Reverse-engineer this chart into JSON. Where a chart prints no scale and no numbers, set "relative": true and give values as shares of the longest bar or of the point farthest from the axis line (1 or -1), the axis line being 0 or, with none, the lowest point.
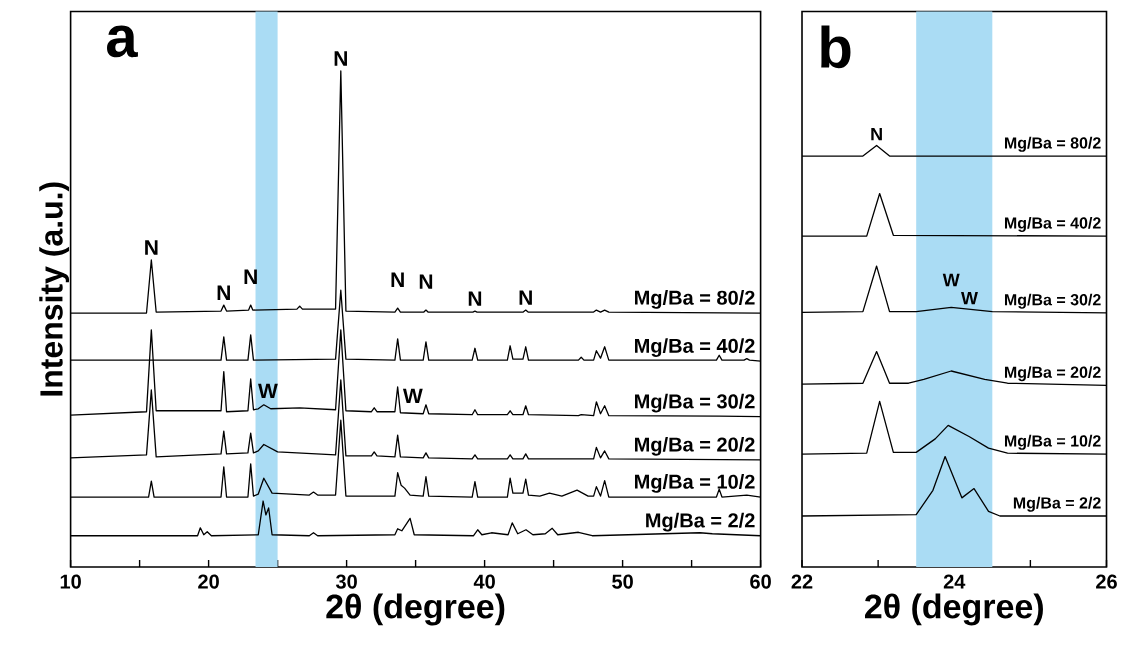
{
  "chart_data": [
    {
      "type": "line",
      "title": "a",
      "xlabel": "2θ (degree)",
      "ylabel": "Intensity (a.u.)",
      "relative": true,
      "xlim": [
        10,
        60
      ],
      "xticks": [
        10,
        {
          "value": 15,
          "label": null
        },
        20,
        {
          "value": 25,
          "label": null
        },
        30,
        {
          "value": 35,
          "label": null
        },
        40,
        {
          "value": 45,
          "label": null
        },
        50,
        {
          "value": 55,
          "label": null
        },
        60
      ],
      "bands": [
        {
          "axis": "x",
          "from": 23.4,
          "to": 25.0,
          "color": "#aadcf4"
        }
      ],
      "annotations": [
        {
          "text": "N",
          "x": 15.85,
          "y": 0.619
        },
        {
          "text": "N",
          "x": 21.1,
          "y": 0.528
        },
        {
          "text": "N",
          "x": 23.05,
          "y": 0.528
        },
        {
          "text": "N",
          "x": 29.58,
          "y": 1.0
        },
        {
          "text": "N",
          "x": 33.7,
          "y": 0.522
        },
        {
          "text": "N",
          "x": 35.75,
          "y": 0.518
        },
        {
          "text": "N",
          "x": 39.3,
          "y": 0.516
        },
        {
          "text": "N",
          "x": 42.98,
          "y": 0.518
        },
        {
          "text": "W",
          "x": 24.3,
          "y": 0.33
        },
        {
          "text": "W",
          "x": 34.8,
          "y": 0.32
        }
      ],
      "series": [
        {
          "name": "Mg/Ba = 80/2",
          "color": "#000000",
          "x": [
            10,
            15.5,
            15.85,
            16.2,
            20.9,
            21.1,
            21.3,
            22.9,
            23.05,
            23.2,
            26.4,
            26.6,
            26.8,
            29.2,
            29.58,
            29.95,
            33.5,
            33.7,
            33.9,
            35.6,
            35.75,
            35.9,
            39.15,
            39.3,
            39.45,
            42.8,
            42.98,
            43.15,
            47.9,
            48.1,
            48.4,
            48.7,
            49.0,
            60
          ],
          "values": [
            0.512,
            0.512,
            0.619,
            0.514,
            0.516,
            0.528,
            0.516,
            0.518,
            0.528,
            0.518,
            0.52,
            0.526,
            0.52,
            0.52,
            1.0,
            0.516,
            0.514,
            0.522,
            0.514,
            0.514,
            0.518,
            0.514,
            0.514,
            0.516,
            0.514,
            0.514,
            0.518,
            0.514,
            0.514,
            0.518,
            0.514,
            0.518,
            0.514,
            0.512
          ]
        },
        {
          "name": "Mg/Ba = 40/2",
          "color": "#000000",
          "x": [
            10,
            15.5,
            15.85,
            16.2,
            20.9,
            21.1,
            21.3,
            22.85,
            23.05,
            23.25,
            29.2,
            29.58,
            29.95,
            33.5,
            33.7,
            33.9,
            35.55,
            35.75,
            35.95,
            39.1,
            39.3,
            39.5,
            41.65,
            41.85,
            42.05,
            42.78,
            42.98,
            43.18,
            46.8,
            47.0,
            47.2,
            47.9,
            48.1,
            48.4,
            48.7,
            49.0,
            56.8,
            57.0,
            57.2,
            58.8,
            59.0,
            59.2,
            60
          ],
          "values": [
            0.417,
            0.417,
            0.417,
            0.417,
            0.417,
            0.464,
            0.417,
            0.417,
            0.468,
            0.417,
            0.419,
            0.558,
            0.419,
            0.417,
            0.46,
            0.417,
            0.417,
            0.454,
            0.417,
            0.417,
            0.441,
            0.417,
            0.417,
            0.446,
            0.419,
            0.419,
            0.444,
            0.417,
            0.417,
            0.423,
            0.417,
            0.417,
            0.436,
            0.421,
            0.444,
            0.417,
            0.417,
            0.427,
            0.417,
            0.417,
            0.42,
            0.417,
            0.415
          ]
        },
        {
          "name": "Mg/Ba = 30/2",
          "color": "#000000",
          "x": [
            10,
            15.5,
            15.85,
            16.2,
            20.9,
            21.1,
            21.3,
            22.85,
            23.05,
            23.25,
            23.6,
            24.0,
            24.5,
            26.6,
            29.2,
            29.58,
            29.95,
            31.8,
            32.0,
            32.2,
            33.5,
            33.7,
            33.9,
            35.55,
            35.75,
            35.95,
            39.1,
            39.3,
            39.5,
            41.65,
            41.85,
            42.05,
            42.78,
            42.98,
            43.18,
            46.8,
            47.0,
            47.9,
            48.1,
            48.4,
            48.7,
            49.0,
            57.0,
            60
          ],
          "values": [
            0.306,
            0.313,
            0.478,
            0.315,
            0.315,
            0.394,
            0.313,
            0.315,
            0.379,
            0.317,
            0.319,
            0.327,
            0.319,
            0.321,
            0.317,
            0.478,
            0.315,
            0.313,
            0.321,
            0.313,
            0.313,
            0.363,
            0.311,
            0.309,
            0.327,
            0.309,
            0.307,
            0.317,
            0.307,
            0.307,
            0.315,
            0.307,
            0.307,
            0.325,
            0.307,
            0.305,
            0.307,
            0.305,
            0.333,
            0.309,
            0.325,
            0.305,
            0.304,
            0.303
          ]
        },
        {
          "name": "Mg/Ba = 20/2",
          "color": "#000000",
          "x": [
            10,
            15.5,
            15.85,
            16.2,
            20.9,
            21.1,
            21.3,
            22.85,
            23.05,
            23.25,
            23.6,
            24.0,
            25.0,
            29.2,
            29.58,
            29.95,
            31.8,
            32.0,
            32.2,
            33.5,
            33.7,
            33.9,
            35.55,
            35.75,
            35.95,
            39.1,
            39.3,
            39.5,
            41.65,
            41.85,
            42.05,
            42.78,
            42.98,
            43.18,
            47.9,
            48.1,
            48.4,
            48.7,
            49.0,
            60
          ],
          "values": [
            0.22,
            0.226,
            0.357,
            0.222,
            0.228,
            0.274,
            0.228,
            0.23,
            0.27,
            0.23,
            0.234,
            0.247,
            0.232,
            0.226,
            0.377,
            0.224,
            0.224,
            0.232,
            0.224,
            0.222,
            0.266,
            0.222,
            0.22,
            0.23,
            0.22,
            0.218,
            0.226,
            0.218,
            0.218,
            0.226,
            0.218,
            0.218,
            0.228,
            0.218,
            0.218,
            0.241,
            0.22,
            0.234,
            0.218,
            0.216
          ]
        },
        {
          "name": "Mg/Ba = 10/2",
          "color": "#000000",
          "x": [
            10,
            15.65,
            15.85,
            16.05,
            20.9,
            21.1,
            21.3,
            22.85,
            23.05,
            23.25,
            23.6,
            24.0,
            24.6,
            27.3,
            27.6,
            27.9,
            29.2,
            29.58,
            29.95,
            33.5,
            33.7,
            33.95,
            34.2,
            34.6,
            35.55,
            35.75,
            35.95,
            39.1,
            39.3,
            39.5,
            41.65,
            41.85,
            42.05,
            42.78,
            42.98,
            43.18,
            44.0,
            44.7,
            45.6,
            46.7,
            47.5,
            47.9,
            48.1,
            48.4,
            48.7,
            49.0,
            56.8,
            57.0,
            57.2,
            59.0,
            60
          ],
          "values": [
            0.141,
            0.141,
            0.173,
            0.141,
            0.141,
            0.202,
            0.141,
            0.141,
            0.208,
            0.143,
            0.147,
            0.179,
            0.149,
            0.145,
            0.151,
            0.145,
            0.145,
            0.296,
            0.143,
            0.143,
            0.19,
            0.165,
            0.159,
            0.145,
            0.143,
            0.182,
            0.143,
            0.141,
            0.172,
            0.141,
            0.141,
            0.179,
            0.149,
            0.149,
            0.177,
            0.145,
            0.143,
            0.149,
            0.143,
            0.155,
            0.143,
            0.143,
            0.162,
            0.143,
            0.174,
            0.141,
            0.141,
            0.157,
            0.141,
            0.145,
            0.141
          ]
        },
        {
          "name": "Mg/Ba = 2/2",
          "color": "#000000",
          "x": [
            10,
            19.2,
            19.4,
            19.65,
            19.9,
            20.2,
            23.6,
            23.95,
            24.15,
            24.35,
            24.6,
            27.3,
            27.6,
            27.9,
            33.5,
            33.7,
            34.0,
            34.6,
            34.9,
            39.2,
            39.5,
            39.8,
            40.5,
            41.7,
            42.0,
            42.4,
            43.0,
            43.5,
            44.4,
            44.9,
            45.3,
            46.8,
            47.8,
            55.6,
            56.5,
            60
          ],
          "values": [
            0.063,
            0.063,
            0.079,
            0.065,
            0.071,
            0.063,
            0.065,
            0.133,
            0.105,
            0.119,
            0.065,
            0.063,
            0.069,
            0.063,
            0.065,
            0.077,
            0.073,
            0.098,
            0.065,
            0.063,
            0.075,
            0.065,
            0.069,
            0.065,
            0.089,
            0.067,
            0.075,
            0.065,
            0.067,
            0.078,
            0.065,
            0.07,
            0.063,
            0.069,
            0.067,
            0.063
          ]
        }
      ]
    },
    {
      "type": "line",
      "title": "b",
      "xlabel": "2θ (degree)",
      "relative": true,
      "xlim": [
        22,
        26
      ],
      "xticks": [
        22,
        {
          "value": 23,
          "label": null
        },
        24,
        {
          "value": 25,
          "label": null
        },
        26
      ],
      "bands": [
        {
          "axis": "x",
          "from": 23.5,
          "to": 24.5,
          "color": "#aadcf4"
        }
      ],
      "annotations": [
        {
          "text": "N",
          "x": 22.98,
          "y": 1.0
        },
        {
          "text": "W",
          "x": 23.96,
          "y": 0.616
        },
        {
          "text": "W",
          "x": 24.2,
          "y": 0.611
        }
      ],
      "series": [
        {
          "name": "Mg/Ba = 80/2",
          "color": "#000000",
          "x": [
            22,
            22.8,
            22.98,
            23.15,
            26
          ],
          "values": [
            0.975,
            0.975,
            1.0,
            0.975,
            0.975
          ]
        },
        {
          "name": "Mg/Ba = 40/2",
          "color": "#000000",
          "x": [
            22,
            22.85,
            23.02,
            23.2,
            26
          ],
          "values": [
            0.785,
            0.785,
            0.886,
            0.787,
            0.785
          ]
        },
        {
          "name": "Mg/Ba = 30/2",
          "color": "#000000",
          "x": [
            22,
            22.8,
            22.98,
            23.15,
            23.5,
            23.96,
            24.5,
            26
          ],
          "values": [
            0.604,
            0.606,
            0.714,
            0.606,
            0.606,
            0.616,
            0.606,
            0.603
          ]
        },
        {
          "name": "Mg/Ba = 20/2",
          "color": "#000000",
          "x": [
            22,
            22.8,
            22.98,
            23.15,
            23.4,
            23.6,
            23.96,
            24.4,
            24.7,
            26
          ],
          "values": [
            0.434,
            0.436,
            0.511,
            0.436,
            0.436,
            0.445,
            0.465,
            0.445,
            0.436,
            0.431
          ]
        },
        {
          "name": "Mg/Ba = 10/2",
          "color": "#000000",
          "x": [
            22,
            22.85,
            23.02,
            23.2,
            23.5,
            23.75,
            23.92,
            24.2,
            24.45,
            24.7,
            26
          ],
          "values": [
            0.268,
            0.27,
            0.393,
            0.272,
            0.272,
            0.304,
            0.336,
            0.309,
            0.282,
            0.27,
            0.268
          ]
        },
        {
          "name": "Mg/Ba = 2/2",
          "color": "#000000",
          "x": [
            22,
            23.5,
            23.72,
            23.88,
            24.1,
            24.26,
            24.45,
            24.6,
            26
          ],
          "values": [
            0.121,
            0.124,
            0.182,
            0.262,
            0.164,
            0.186,
            0.132,
            0.121,
            0.121
          ]
        }
      ]
    }
  ]
}
